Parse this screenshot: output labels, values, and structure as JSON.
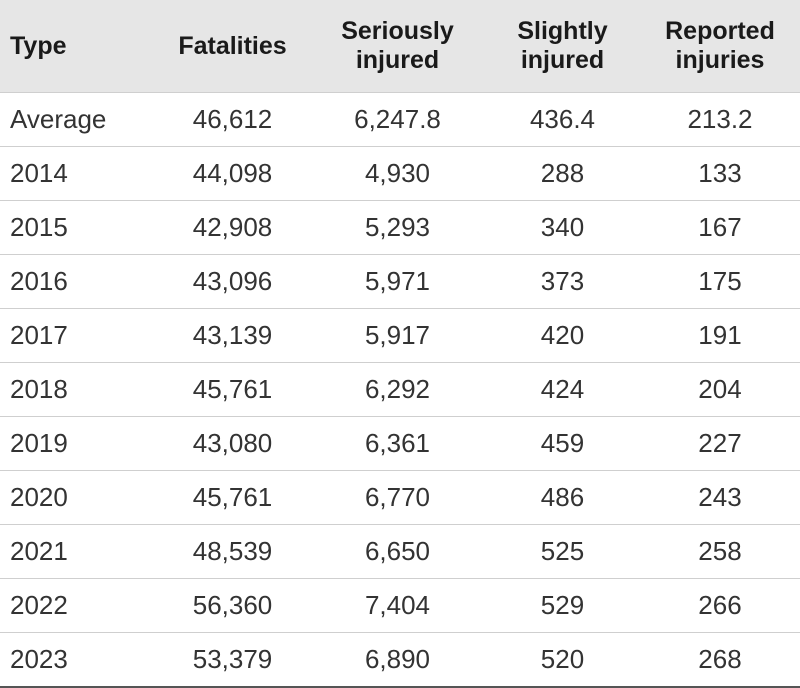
{
  "table": {
    "header": [
      "Type",
      "Fatalities",
      "Seriously injured",
      "Slightly injured",
      "Reported injuries"
    ],
    "rows": [
      [
        "Average",
        "46,612",
        "6,247.8",
        "436.4",
        "213.2"
      ],
      [
        "2014",
        "44,098",
        "4,930",
        "288",
        "133"
      ],
      [
        "2015",
        "42,908",
        "5,293",
        "340",
        "167"
      ],
      [
        "2016",
        "43,096",
        "5,971",
        "373",
        "175"
      ],
      [
        "2017",
        "43,139",
        "5,917",
        "420",
        "191"
      ],
      [
        "2018",
        "45,761",
        "6,292",
        "424",
        "204"
      ],
      [
        "2019",
        "43,080",
        "6,361",
        "459",
        "227"
      ],
      [
        "2020",
        "45,761",
        "6,770",
        "486",
        "243"
      ],
      [
        "2021",
        "48,539",
        "6,650",
        "525",
        "258"
      ],
      [
        "2022",
        "56,360",
        "7,404",
        "529",
        "266"
      ],
      [
        "2023",
        "53,379",
        "6,890",
        "520",
        "268"
      ]
    ]
  }
}
